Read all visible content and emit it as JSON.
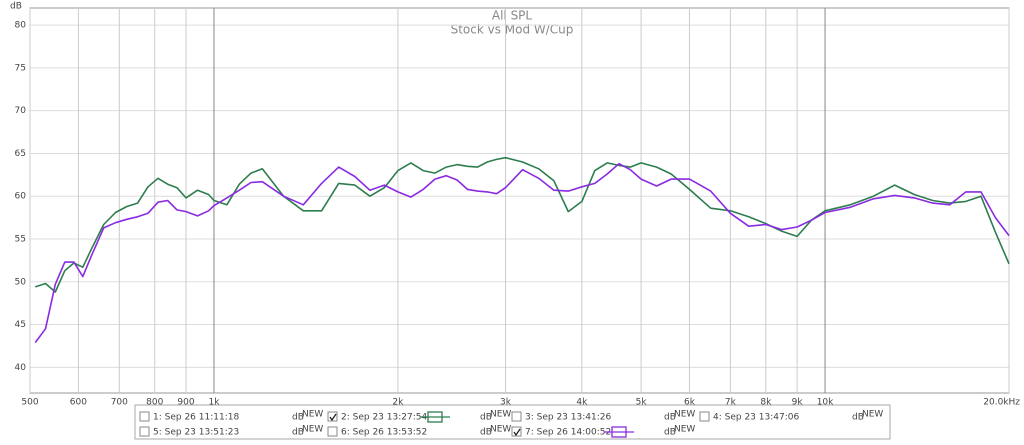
{
  "chart_data": {
    "type": "line",
    "title": "All SPL",
    "subtitle": "Stock vs Mod W/Cup",
    "y_label": "dB",
    "log_x": true,
    "grid": true,
    "xlim": [
      500,
      20000
    ],
    "ylim": [
      37,
      82
    ],
    "xticks": [
      500,
      600,
      700,
      800,
      900,
      {
        "value": 1000,
        "label": "1k"
      },
      {
        "value": 2000,
        "label": "2k"
      },
      {
        "value": 3000,
        "label": "3k"
      },
      {
        "value": 4000,
        "label": "4k"
      },
      {
        "value": 5000,
        "label": "5k"
      },
      {
        "value": 6000,
        "label": "6k"
      },
      {
        "value": 7000,
        "label": "7k"
      },
      {
        "value": 8000,
        "label": "8k"
      },
      {
        "value": 9000,
        "label": "9k"
      },
      {
        "value": 10000,
        "label": "10k"
      },
      {
        "value": 20000,
        "label": "20.0kHz"
      }
    ],
    "yticks": [
      40,
      45,
      50,
      55,
      60,
      65,
      70,
      75,
      80
    ],
    "x": [
      510,
      530,
      550,
      570,
      590,
      610,
      630,
      660,
      690,
      720,
      750,
      780,
      810,
      840,
      870,
      900,
      940,
      980,
      1000,
      1050,
      1100,
      1150,
      1200,
      1300,
      1400,
      1500,
      1600,
      1700,
      1800,
      1900,
      2000,
      2100,
      2200,
      2300,
      2400,
      2500,
      2600,
      2700,
      2800,
      2900,
      3000,
      3200,
      3400,
      3600,
      3800,
      4000,
      4200,
      4400,
      4600,
      4800,
      5000,
      5300,
      5600,
      6000,
      6500,
      7000,
      7500,
      8000,
      8500,
      9000,
      9500,
      10000,
      11000,
      12000,
      13000,
      14000,
      15000,
      16000,
      17000,
      18000,
      19000,
      20000
    ],
    "series": [
      {
        "color": "#2e7d4f",
        "values": [
          49.4,
          49.8,
          48.8,
          51.3,
          52.2,
          51.7,
          53.8,
          56.7,
          58.1,
          58.8,
          59.2,
          61.1,
          62.1,
          61.4,
          61.0,
          59.8,
          60.7,
          60.2,
          59.5,
          59.0,
          61.4,
          62.7,
          63.2,
          60.0,
          58.3,
          58.3,
          61.5,
          61.3,
          60.0,
          61.0,
          63.0,
          63.9,
          63.0,
          62.7,
          63.4,
          63.7,
          63.5,
          63.4,
          64.0,
          64.3,
          64.5,
          64.0,
          63.2,
          61.8,
          58.2,
          59.4,
          63.0,
          63.9,
          63.6,
          63.4,
          63.9,
          63.4,
          62.6,
          60.8,
          58.6,
          58.3,
          57.6,
          56.8,
          55.9,
          55.3,
          57.2,
          58.3,
          59.0,
          60.0,
          61.3,
          60.2,
          59.5,
          59.2,
          59.4,
          60.0,
          55.8,
          52.1
        ]
      },
      {
        "color": "#8a2be2",
        "values": [
          42.9,
          44.5,
          49.7,
          52.3,
          52.3,
          50.6,
          53.0,
          56.3,
          56.9,
          57.3,
          57.6,
          58.0,
          59.3,
          59.5,
          58.4,
          58.2,
          57.7,
          58.3,
          58.9,
          59.8,
          60.7,
          61.6,
          61.7,
          60.0,
          59.0,
          61.5,
          63.4,
          62.3,
          60.7,
          61.3,
          60.5,
          59.9,
          60.8,
          62.0,
          62.4,
          61.9,
          60.8,
          60.6,
          60.5,
          60.3,
          61.0,
          63.1,
          62.1,
          60.7,
          60.6,
          61.1,
          61.5,
          62.6,
          63.8,
          63.1,
          62.0,
          61.2,
          62.0,
          62.0,
          60.6,
          58.0,
          56.5,
          56.7,
          56.1,
          56.4,
          57.2,
          58.1,
          58.7,
          59.7,
          60.1,
          59.8,
          59.2,
          59.0,
          60.5,
          60.5,
          57.5,
          55.4
        ]
      }
    ],
    "legend_unit": "dB",
    "legend_badge": "NEW",
    "legend_entries": [
      {
        "label": "1: Sep 26 11:11:18",
        "color": "#e03030",
        "checked": false
      },
      {
        "label": "2: Sep 23 13:27:54",
        "color": "#2e7d4f",
        "checked": true
      },
      {
        "label": "3: Sep 23 13:41:26",
        "color": "#7b68ee",
        "checked": false
      },
      {
        "label": "4: Sep 23 13:47:06",
        "color": "#f08020",
        "checked": false
      },
      {
        "label": "5: Sep 23 13:51:23",
        "color": "#22a022",
        "checked": false
      },
      {
        "label": "6: Sep 26 13:53:52",
        "color": "#2a8a8a",
        "checked": false
      },
      {
        "label": "7: Sep 26 14:00:52",
        "color": "#8a2be2",
        "checked": true
      }
    ]
  }
}
